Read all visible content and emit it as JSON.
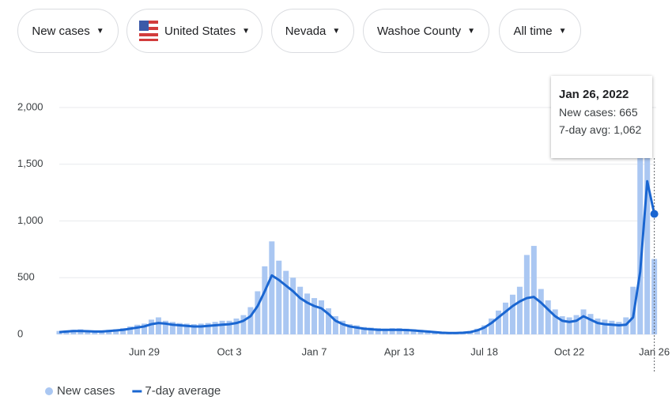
{
  "filters": [
    "New cases",
    "United States",
    "Nevada",
    "Washoe County",
    "All time"
  ],
  "chart_data": {
    "type": "combo",
    "categories": [
      null,
      null,
      null,
      null,
      null,
      null,
      null,
      null,
      null,
      null,
      null,
      null,
      "Jun 29",
      null,
      null,
      null,
      null,
      null,
      null,
      null,
      null,
      null,
      null,
      null,
      "Oct 3",
      null,
      null,
      null,
      null,
      null,
      null,
      null,
      null,
      null,
      null,
      null,
      "Jan 7",
      null,
      null,
      null,
      null,
      null,
      null,
      null,
      null,
      null,
      null,
      null,
      "Apr 13",
      null,
      null,
      null,
      null,
      null,
      null,
      null,
      null,
      null,
      null,
      null,
      "Jul 18",
      null,
      null,
      null,
      null,
      null,
      null,
      null,
      null,
      null,
      null,
      null,
      "Oct 22",
      null,
      null,
      null,
      null,
      null,
      null,
      null,
      null,
      null,
      null,
      null,
      "Jan 26"
    ],
    "series": [
      {
        "name": "New cases",
        "type": "bar",
        "color": "#aac7f2",
        "values": [
          30,
          35,
          40,
          45,
          35,
          30,
          35,
          40,
          45,
          55,
          70,
          85,
          95,
          130,
          150,
          120,
          110,
          100,
          95,
          90,
          95,
          100,
          110,
          120,
          120,
          140,
          170,
          240,
          380,
          600,
          820,
          650,
          560,
          500,
          420,
          360,
          320,
          300,
          230,
          160,
          120,
          90,
          80,
          65,
          60,
          55,
          50,
          55,
          55,
          50,
          45,
          40,
          35,
          28,
          20,
          18,
          18,
          22,
          30,
          50,
          80,
          140,
          210,
          280,
          350,
          420,
          700,
          780,
          400,
          300,
          220,
          160,
          150,
          170,
          220,
          180,
          140,
          130,
          120,
          110,
          150,
          420,
          1700,
          1900,
          665
        ]
      },
      {
        "name": "7-day average",
        "type": "line",
        "color": "#1a66d1",
        "values": [
          20,
          25,
          30,
          30,
          28,
          25,
          25,
          30,
          35,
          40,
          50,
          60,
          70,
          90,
          100,
          95,
          85,
          80,
          75,
          70,
          70,
          75,
          80,
          85,
          90,
          100,
          120,
          160,
          250,
          380,
          520,
          480,
          430,
          380,
          320,
          280,
          250,
          230,
          180,
          120,
          90,
          70,
          60,
          50,
          45,
          40,
          40,
          40,
          40,
          38,
          35,
          30,
          25,
          20,
          15,
          12,
          12,
          15,
          20,
          35,
          60,
          100,
          150,
          200,
          250,
          290,
          320,
          330,
          280,
          220,
          160,
          120,
          110,
          120,
          160,
          130,
          100,
          90,
          85,
          80,
          85,
          150,
          550,
          1350,
          1062
        ]
      }
    ],
    "ylim": [
      0,
      2000
    ],
    "yticks": [
      0,
      500,
      {
        "value": 1000,
        "label": "1,000"
      },
      {
        "value": 1500,
        "label": "1,500"
      },
      {
        "value": 2000,
        "label": "2,000"
      }
    ],
    "grid": true,
    "tooltip": {
      "title": "Jan 26, 2022",
      "lines": [
        "New cases: 665",
        "7-day avg: 1,062"
      ]
    }
  }
}
